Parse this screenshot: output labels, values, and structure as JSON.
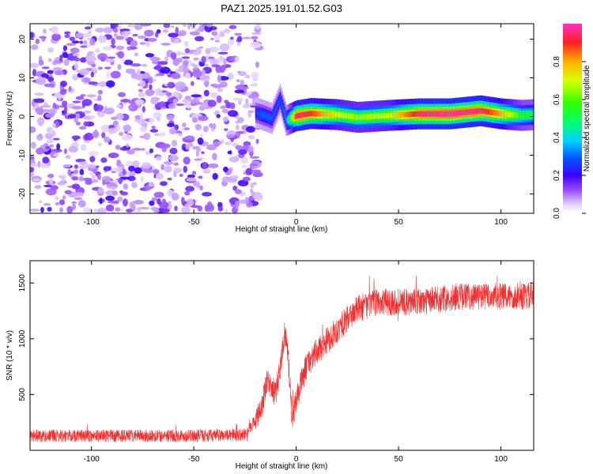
{
  "title": "PAZ1.2025.191.01.52.G03",
  "chart_data": [
    {
      "type": "heatmap",
      "xlabel": "Height of straight line (km)",
      "ylabel": "Frequency (Hz)",
      "xlim": [
        -130,
        116
      ],
      "ylim": [
        -25,
        24
      ],
      "xticks": [
        -100,
        -50,
        0,
        50,
        100
      ],
      "yticks": [
        -20,
        -10,
        0,
        10,
        20
      ],
      "colorbar": {
        "label": "Normalized spectral amplitude",
        "range": [
          0.0,
          1.0
        ],
        "ticks": [
          0.0,
          0.2,
          0.4,
          0.6,
          0.8
        ]
      },
      "ridge": [
        {
          "x": -20,
          "f": 1.0,
          "amp": 0.25
        },
        {
          "x": -17,
          "f": 0.5,
          "amp": 0.3
        },
        {
          "x": -12,
          "f": -0.5,
          "amp": 0.3
        },
        {
          "x": -8,
          "f": 4.5,
          "amp": 0.28
        },
        {
          "x": -5,
          "f": -1.0,
          "amp": 0.35
        },
        {
          "x": 0,
          "f": 0.2,
          "amp": 0.95
        },
        {
          "x": 7,
          "f": 0.8,
          "amp": 0.9
        },
        {
          "x": 20,
          "f": 0.5,
          "amp": 0.7
        },
        {
          "x": 30,
          "f": -0.2,
          "amp": 0.65
        },
        {
          "x": 45,
          "f": 0.3,
          "amp": 0.7
        },
        {
          "x": 60,
          "f": 0.7,
          "amp": 0.95
        },
        {
          "x": 75,
          "f": 0.7,
          "amp": 0.98
        },
        {
          "x": 90,
          "f": 1.5,
          "amp": 0.95
        },
        {
          "x": 100,
          "f": 0.7,
          "amp": 0.8
        },
        {
          "x": 110,
          "f": 0.3,
          "amp": 0.55
        },
        {
          "x": 116,
          "f": 0.5,
          "amp": 0.5
        }
      ]
    },
    {
      "type": "line",
      "xlabel": "Height of straight line (km)",
      "ylabel": "SNR (10 * v/v)",
      "xlim": [
        -130,
        116
      ],
      "ylim": [
        0,
        1700
      ],
      "xticks": [
        -100,
        -50,
        0,
        50,
        100
      ],
      "yticks": [
        500,
        1000,
        1500
      ],
      "color": "#f03030",
      "mean": [
        {
          "x": -130,
          "y": 130
        },
        {
          "x": -100,
          "y": 130
        },
        {
          "x": -50,
          "y": 130
        },
        {
          "x": -25,
          "y": 140
        },
        {
          "x": -18,
          "y": 320
        },
        {
          "x": -14,
          "y": 620
        },
        {
          "x": -10,
          "y": 500
        },
        {
          "x": -7,
          "y": 850
        },
        {
          "x": -5,
          "y": 1050
        },
        {
          "x": -3,
          "y": 600
        },
        {
          "x": -2,
          "y": 280
        },
        {
          "x": 1,
          "y": 520
        },
        {
          "x": 5,
          "y": 760
        },
        {
          "x": 10,
          "y": 880
        },
        {
          "x": 20,
          "y": 1080
        },
        {
          "x": 30,
          "y": 1270
        },
        {
          "x": 40,
          "y": 1330
        },
        {
          "x": 60,
          "y": 1330
        },
        {
          "x": 80,
          "y": 1380
        },
        {
          "x": 100,
          "y": 1380
        },
        {
          "x": 116,
          "y": 1380
        }
      ]
    }
  ]
}
